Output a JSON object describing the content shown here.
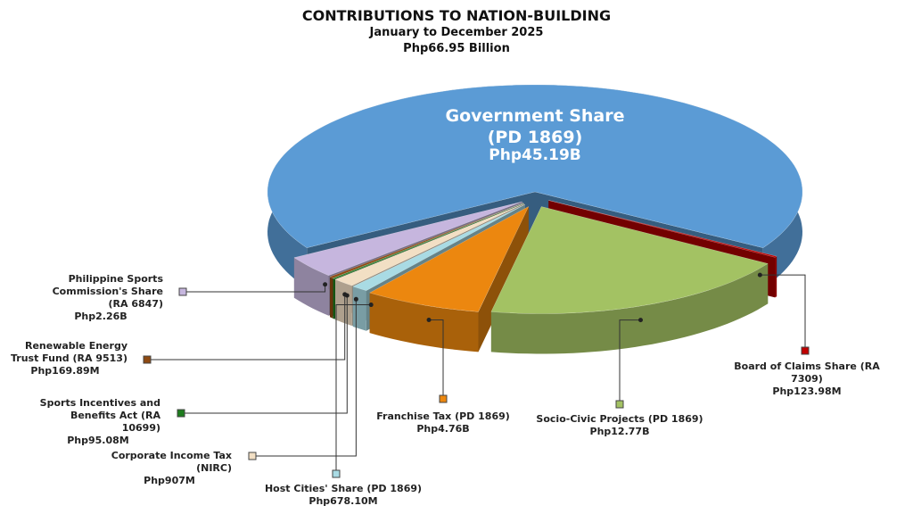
{
  "chart_data": {
    "type": "pie",
    "title": "CONTRIBUTIONS TO NATION-BUILDING",
    "subtitle": "January to December 2025",
    "total_label": "Php66.95 Billion",
    "categories": [
      "Government Share (PD 1869)",
      "Board of Claims Share (RA 7309)",
      "Socio-Civic Projects (PD 1869)",
      "Franchise Tax (PD 1869)",
      "Host Cities' Share (PD 1869)",
      "Corporate Income Tax (NIRC)",
      "Sports Incentives and Benefits Act (RA 10699)",
      "Renewable Energy Trust Fund (RA 9513)",
      "Philippine Sports Commission's Share (RA 6847)"
    ],
    "values": [
      45.19,
      0.12398,
      12.77,
      4.76,
      0.6781,
      0.907,
      0.09508,
      0.16989,
      2.26
    ],
    "value_labels": [
      "Php45.19B",
      "Php123.98M",
      "Php12.77B",
      "Php4.76B",
      "Php678.10M",
      "Php907M",
      "Php95.08M",
      "Php169.89M",
      "Php2.26B"
    ],
    "colors": [
      "#5b9bd5",
      "#c00000",
      "#a3c263",
      "#ec870f",
      "#a9dbe4",
      "#f2dfc4",
      "#1e7d1e",
      "#8e4a12",
      "#c6b6de"
    ]
  }
}
